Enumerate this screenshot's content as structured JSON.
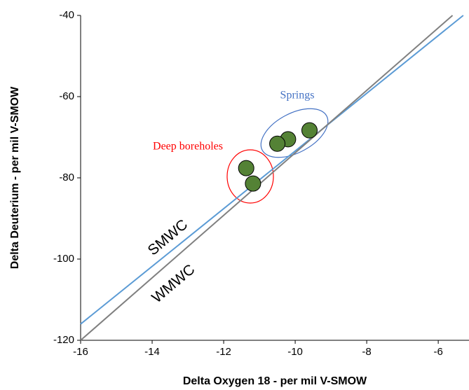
{
  "chart_data": {
    "type": "scatter",
    "xlabel": "Delta Oxygen 18 - per mil V-SMOW",
    "ylabel": "Delta Deuterium - per mil V-SMOW",
    "xlim": [
      -16,
      -5.14
    ],
    "ylim": [
      -120,
      -40
    ],
    "xticks": [
      -16,
      -14,
      -12,
      -10,
      -8,
      -6
    ],
    "yticks": [
      -120,
      -100,
      -80,
      -60,
      -40
    ],
    "series": [
      {
        "name": "SMWC",
        "type": "line",
        "color": "#5b9bd5",
        "x": [
          -16,
          -5.3
        ],
        "values": [
          -116,
          -40
        ]
      },
      {
        "name": "WMWC",
        "type": "line",
        "color": "#808080",
        "x": [
          -16,
          -5.6
        ],
        "values": [
          -120,
          -40
        ]
      },
      {
        "type": "scatter",
        "color": "#548235",
        "x": [
          -9.6,
          -10.2,
          -10.5,
          -11.37,
          -11.18
        ],
        "values": [
          -68.3,
          -70.5,
          -71.6,
          -77.6,
          -81.4
        ]
      }
    ],
    "annotations": [
      {
        "text": "Springs",
        "color": "#4472c4"
      },
      {
        "text": "Deep boreholes",
        "color": "#ff0000"
      }
    ]
  }
}
